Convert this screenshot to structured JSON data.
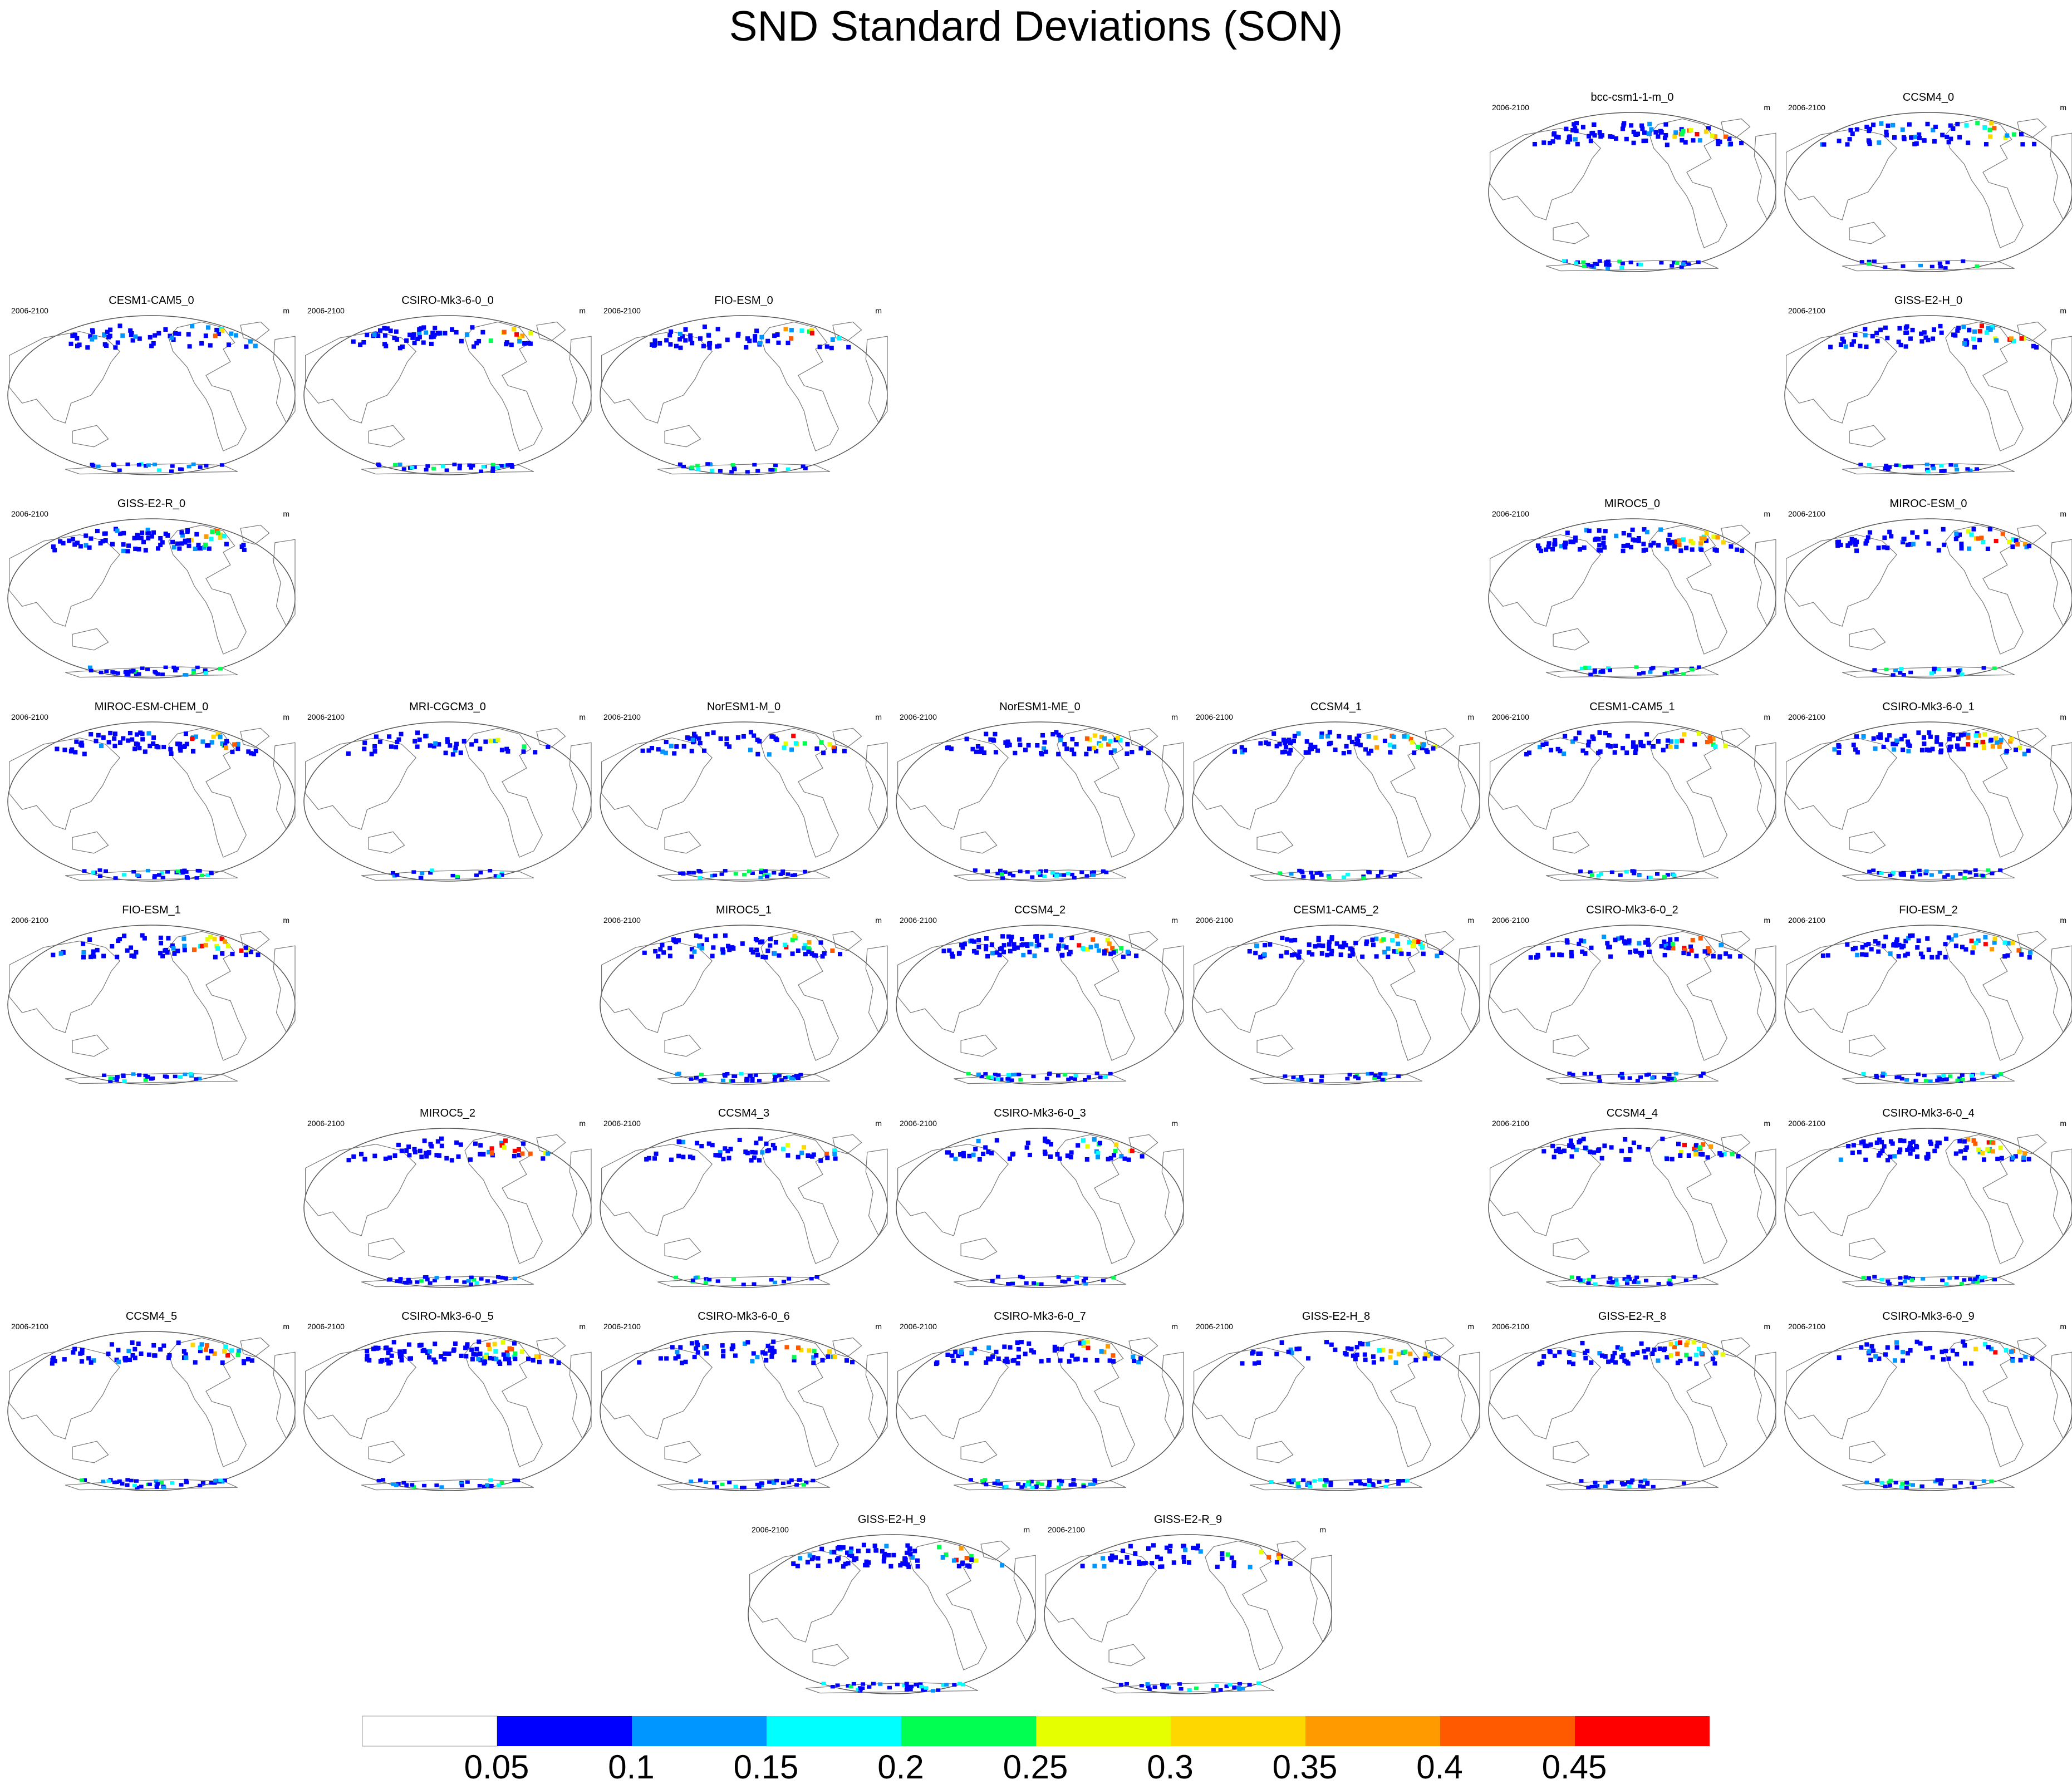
{
  "chart_data": {
    "type": "heatmap",
    "title": "SND Standard Deviations (SON)",
    "panel_left_label": "2006-2100",
    "panel_units": "m",
    "projection": "global map (Pacific-centred ellipse)",
    "colorbar": {
      "ticks": [
        "0.05",
        "0.1",
        "0.15",
        "0.2",
        "0.25",
        "0.3",
        "0.35",
        "0.4",
        "0.45"
      ],
      "colors": [
        "#ffffff",
        "#0000ff",
        "#0096ff",
        "#00ffff",
        "#00ff50",
        "#e6ff00",
        "#ffd700",
        "#ff9b00",
        "#ff5a00",
        "#ff0000"
      ]
    },
    "panels": [
      {
        "name": "bcc-csm1-1-m_0",
        "row": 0,
        "col": 5
      },
      {
        "name": "CCSM4_0",
        "row": 0,
        "col": 6
      },
      {
        "name": "CESM1-CAM5_0",
        "row": 1,
        "col": 0
      },
      {
        "name": "CSIRO-Mk3-6-0_0",
        "row": 1,
        "col": 1
      },
      {
        "name": "FIO-ESM_0",
        "row": 1,
        "col": 2
      },
      {
        "name": "GISS-E2-H_0",
        "row": 1,
        "col": 6
      },
      {
        "name": "GISS-E2-R_0",
        "row": 2,
        "col": 0
      },
      {
        "name": "MIROC5_0",
        "row": 2,
        "col": 5
      },
      {
        "name": "MIROC-ESM_0",
        "row": 2,
        "col": 6
      },
      {
        "name": "MIROC-ESM-CHEM_0",
        "row": 3,
        "col": 0
      },
      {
        "name": "MRI-CGCM3_0",
        "row": 3,
        "col": 1
      },
      {
        "name": "NorESM1-M_0",
        "row": 3,
        "col": 2
      },
      {
        "name": "NorESM1-ME_0",
        "row": 3,
        "col": 3
      },
      {
        "name": "CCSM4_1",
        "row": 3,
        "col": 4
      },
      {
        "name": "CESM1-CAM5_1",
        "row": 3,
        "col": 5
      },
      {
        "name": "CSIRO-Mk3-6-0_1",
        "row": 3,
        "col": 6
      },
      {
        "name": "FIO-ESM_1",
        "row": 4,
        "col": 0
      },
      {
        "name": "MIROC5_1",
        "row": 4,
        "col": 2
      },
      {
        "name": "CCSM4_2",
        "row": 4,
        "col": 3
      },
      {
        "name": "CESM1-CAM5_2",
        "row": 4,
        "col": 4
      },
      {
        "name": "CSIRO-Mk3-6-0_2",
        "row": 4,
        "col": 5
      },
      {
        "name": "FIO-ESM_2",
        "row": 4,
        "col": 6
      },
      {
        "name": "MIROC5_2",
        "row": 5,
        "col": 1
      },
      {
        "name": "CCSM4_3",
        "row": 5,
        "col": 2
      },
      {
        "name": "CSIRO-Mk3-6-0_3",
        "row": 5,
        "col": 3
      },
      {
        "name": "CCSM4_4",
        "row": 5,
        "col": 5
      },
      {
        "name": "CSIRO-Mk3-6-0_4",
        "row": 5,
        "col": 6
      },
      {
        "name": "CCSM4_5",
        "row": 6,
        "col": 0
      },
      {
        "name": "CSIRO-Mk3-6-0_5",
        "row": 6,
        "col": 1
      },
      {
        "name": "CSIRO-Mk3-6-0_6",
        "row": 6,
        "col": 2
      },
      {
        "name": "CSIRO-Mk3-6-0_7",
        "row": 6,
        "col": 3
      },
      {
        "name": "GISS-E2-H_8",
        "row": 6,
        "col": 4
      },
      {
        "name": "GISS-E2-R_8",
        "row": 6,
        "col": 5
      },
      {
        "name": "CSIRO-Mk3-6-0_9",
        "row": 6,
        "col": 6
      },
      {
        "name": "GISS-E2-H_9",
        "row": 7,
        "col": 2.5
      },
      {
        "name": "GISS-E2-R_9",
        "row": 7,
        "col": 3.5
      }
    ]
  }
}
